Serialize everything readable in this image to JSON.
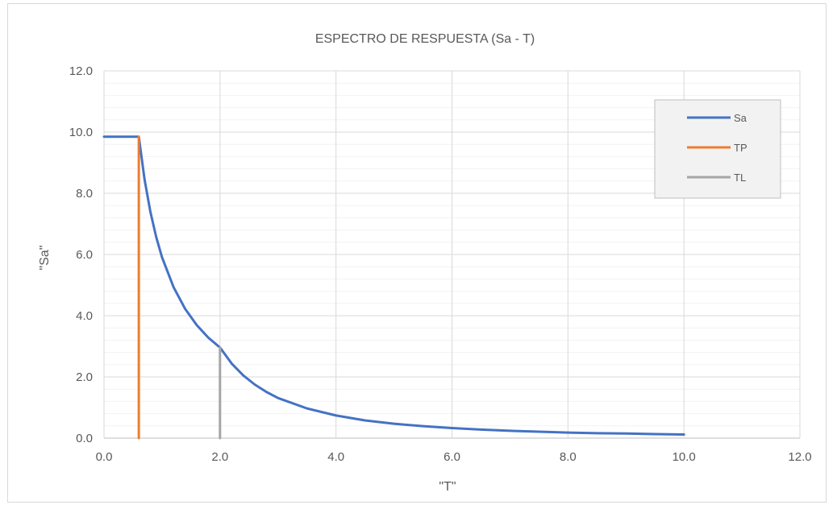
{
  "chart_data": {
    "type": "line",
    "title": "ESPECTRO DE RESPUESTA (Sa - T)",
    "xlabel": "\"T\"",
    "ylabel": "\"Sa\"",
    "xlim": [
      0,
      12
    ],
    "ylim": [
      0,
      12
    ],
    "xticks": [
      0,
      2,
      4,
      6,
      8,
      10,
      12
    ],
    "yticks": [
      0,
      2,
      4,
      6,
      8,
      10,
      12
    ],
    "tick_format_decimals": 1,
    "grid": true,
    "minor_grid_y": true,
    "legend_position": "top-right",
    "series": [
      {
        "name": "Sa",
        "color": "#4472c4",
        "points": [
          [
            0,
            9.85
          ],
          [
            0.6,
            9.85
          ],
          [
            0.7,
            8.44
          ],
          [
            0.8,
            7.39
          ],
          [
            0.9,
            6.57
          ],
          [
            1.0,
            5.91
          ],
          [
            1.2,
            4.93
          ],
          [
            1.4,
            4.22
          ],
          [
            1.6,
            3.69
          ],
          [
            1.8,
            3.28
          ],
          [
            2.0,
            2.96
          ],
          [
            2.2,
            2.44
          ],
          [
            2.4,
            2.05
          ],
          [
            2.6,
            1.75
          ],
          [
            2.8,
            1.51
          ],
          [
            3.0,
            1.31
          ],
          [
            3.5,
            0.97
          ],
          [
            4.0,
            0.74
          ],
          [
            4.5,
            0.58
          ],
          [
            5.0,
            0.47
          ],
          [
            5.5,
            0.39
          ],
          [
            6.0,
            0.33
          ],
          [
            6.5,
            0.28
          ],
          [
            7.0,
            0.24
          ],
          [
            7.5,
            0.21
          ],
          [
            8.0,
            0.18
          ],
          [
            8.5,
            0.16
          ],
          [
            9.0,
            0.15
          ],
          [
            9.5,
            0.13
          ],
          [
            10.0,
            0.12
          ]
        ]
      },
      {
        "name": "TP",
        "color": "#ed7d31",
        "points": [
          [
            0.6,
            0
          ],
          [
            0.6,
            9.85
          ]
        ]
      },
      {
        "name": "TL",
        "color": "#a5a5a5",
        "points": [
          [
            2.0,
            0
          ],
          [
            2.0,
            2.96
          ]
        ]
      }
    ]
  }
}
